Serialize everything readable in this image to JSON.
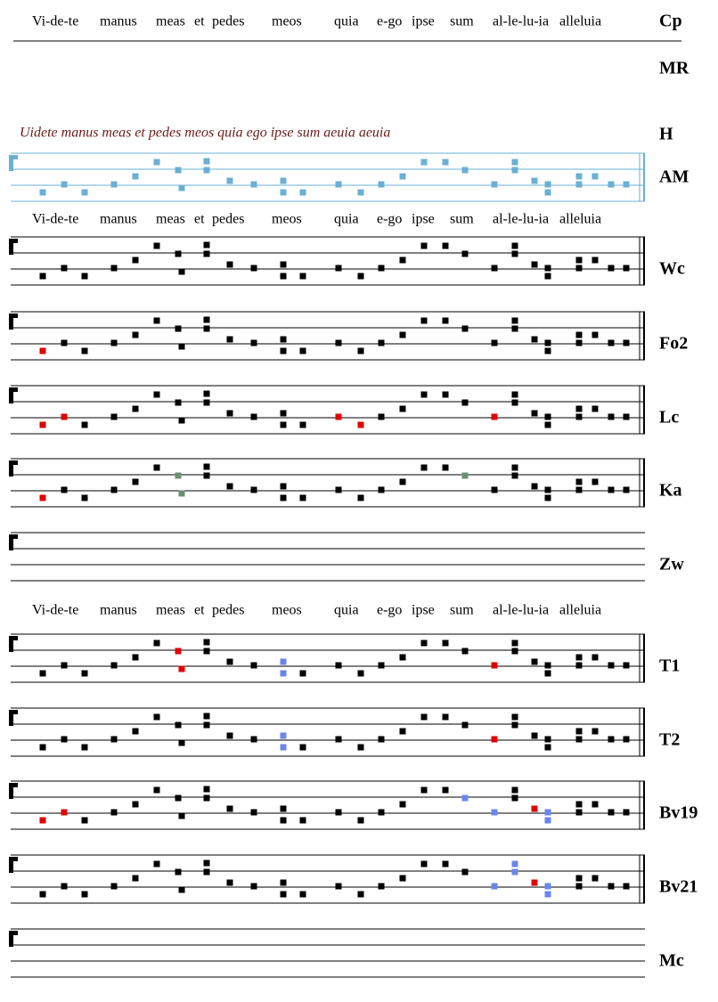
{
  "lyric_lines": [
    [
      "Vi-de-te",
      "manus",
      "meas",
      "et",
      "pedes",
      "meos",
      "quia",
      "e-go",
      "ipse",
      "sum",
      "al-le-lu-ia",
      "alleluia"
    ],
    [
      "Vi-de-te",
      "manus",
      "meas",
      "et",
      "pedes",
      "meos",
      "quia",
      "e-go",
      "ipse",
      "sum",
      "al-le-lu-ia",
      "alleluia"
    ],
    [
      "Vi-de-te",
      "manus",
      "meas",
      "et",
      "pedes",
      "meos",
      "quia",
      "e-go",
      "ipse",
      "sum",
      "al-le-lu-ia",
      "alleluia"
    ]
  ],
  "manuscript": {
    "text": "Uidete manus meas et pedes meos quia ego ipse sum aeuia aeuia"
  },
  "staves": [
    {
      "label": "Cp"
    },
    {
      "label": "MR"
    },
    {
      "label": "H"
    },
    {
      "label": "AM"
    },
    {
      "label": "Wc"
    },
    {
      "label": "Fo2"
    },
    {
      "label": "Lc"
    },
    {
      "label": "Ka"
    },
    {
      "label": "Zw"
    },
    {
      "label": "T1"
    },
    {
      "label": "T2"
    },
    {
      "label": "Bv19"
    },
    {
      "label": "Bv21"
    },
    {
      "label": "Mc"
    }
  ]
}
